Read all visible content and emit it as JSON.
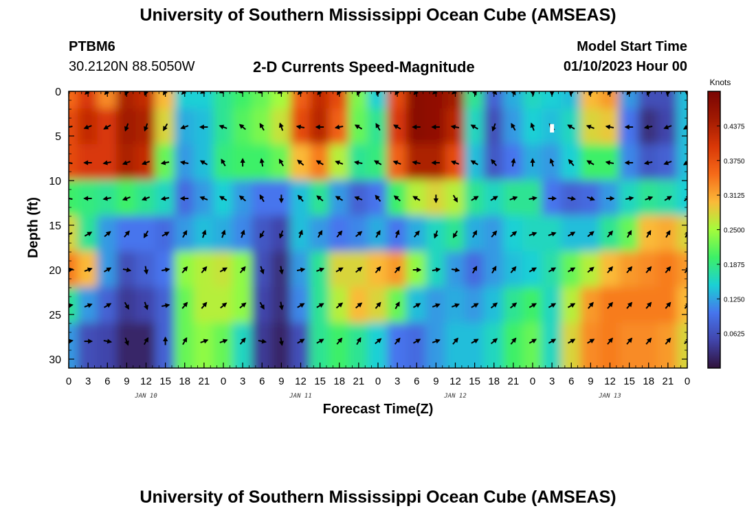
{
  "header": {
    "title": "University of Southern Mississippi Ocean Cube (AMSEAS)",
    "station_id": "PTBM6",
    "coordinates": "30.2120N  88.5050W",
    "model_start_label": "Model Start Time",
    "model_start_value": "01/10/2023 Hour 00",
    "footer_title": "University of Southern Mississippi Ocean Cube (AMSEAS)"
  },
  "chart_data": {
    "type": "heatmap",
    "title": "2-D Currents Speed-Magnitude",
    "xlabel": "Forecast Time(Z)",
    "ylabel": "Depth (ft)",
    "x_ticks": [
      "0",
      "3",
      "6",
      "9",
      "12",
      "15",
      "18",
      "21",
      "0",
      "3",
      "6",
      "9",
      "12",
      "15",
      "18",
      "21",
      "0",
      "3",
      "6",
      "9",
      "12",
      "15",
      "18",
      "21",
      "0",
      "3",
      "6",
      "9",
      "12",
      "15",
      "18",
      "21",
      "0"
    ],
    "day_labels": [
      "JAN 10",
      "JAN 11",
      "JAN 12",
      "JAN 13"
    ],
    "y_ticks": [
      "0",
      "5",
      "10",
      "15",
      "20",
      "25",
      "30"
    ],
    "ylim": [
      0,
      31
    ],
    "xlim_hours": [
      0,
      96
    ],
    "colorbar": {
      "unit": "Knots",
      "ticks": [
        "0.4375",
        "0.3750",
        "0.3125",
        "0.2500",
        "0.1875",
        "0.1250",
        "0.0625"
      ],
      "range": [
        0,
        0.5
      ]
    },
    "depths_ft": [
      0,
      4,
      8,
      12,
      16,
      20,
      24,
      28
    ],
    "times_h": [
      0,
      3,
      6,
      9,
      12,
      15,
      18,
      21,
      24,
      27,
      30,
      33,
      36,
      39,
      42,
      45,
      48,
      51,
      54,
      57,
      60,
      63,
      66,
      69,
      72,
      75,
      78,
      81,
      84,
      87,
      90,
      93,
      96
    ],
    "speed_knots": [
      [
        0.35,
        0.4,
        0.33,
        0.44,
        0.42,
        0.3,
        0.15,
        0.15,
        0.18,
        0.2,
        0.22,
        0.25,
        0.36,
        0.42,
        0.38,
        0.23,
        0.15,
        0.38,
        0.48,
        0.47,
        0.45,
        0.18,
        0.08,
        0.13,
        0.16,
        0.15,
        0.14,
        0.3,
        0.32,
        0.12,
        0.06,
        0.06,
        0.14
      ],
      [
        0.38,
        0.42,
        0.4,
        0.45,
        0.44,
        0.28,
        0.13,
        0.14,
        0.18,
        0.21,
        0.23,
        0.27,
        0.38,
        0.43,
        0.36,
        0.22,
        0.18,
        0.4,
        0.48,
        0.47,
        0.43,
        0.16,
        0.06,
        0.12,
        0.15,
        0.14,
        0.16,
        0.28,
        0.29,
        0.1,
        0.03,
        0.05,
        0.14
      ],
      [
        0.38,
        0.4,
        0.4,
        0.44,
        0.42,
        0.22,
        0.12,
        0.14,
        0.19,
        0.2,
        0.2,
        0.22,
        0.3,
        0.34,
        0.26,
        0.18,
        0.19,
        0.36,
        0.44,
        0.44,
        0.38,
        0.14,
        0.07,
        0.1,
        0.13,
        0.12,
        0.15,
        0.2,
        0.2,
        0.11,
        0.07,
        0.08,
        0.14
      ],
      [
        0.2,
        0.19,
        0.18,
        0.2,
        0.18,
        0.16,
        0.09,
        0.12,
        0.15,
        0.12,
        0.1,
        0.1,
        0.14,
        0.18,
        0.12,
        0.08,
        0.1,
        0.2,
        0.26,
        0.28,
        0.26,
        0.18,
        0.16,
        0.18,
        0.18,
        0.1,
        0.08,
        0.09,
        0.12,
        0.16,
        0.18,
        0.17,
        0.15
      ],
      [
        0.28,
        0.18,
        0.12,
        0.1,
        0.1,
        0.09,
        0.12,
        0.14,
        0.13,
        0.11,
        0.07,
        0.05,
        0.14,
        0.12,
        0.1,
        0.11,
        0.13,
        0.1,
        0.13,
        0.16,
        0.18,
        0.13,
        0.12,
        0.15,
        0.16,
        0.16,
        0.14,
        0.14,
        0.18,
        0.22,
        0.3,
        0.31,
        0.28
      ],
      [
        0.34,
        0.3,
        0.12,
        0.06,
        0.08,
        0.1,
        0.24,
        0.26,
        0.27,
        0.24,
        0.06,
        0.03,
        0.12,
        0.18,
        0.28,
        0.28,
        0.3,
        0.32,
        0.24,
        0.16,
        0.12,
        0.09,
        0.12,
        0.14,
        0.15,
        0.17,
        0.22,
        0.26,
        0.3,
        0.32,
        0.33,
        0.34,
        0.32
      ],
      [
        0.18,
        0.12,
        0.08,
        0.04,
        0.05,
        0.08,
        0.22,
        0.26,
        0.26,
        0.24,
        0.05,
        0.03,
        0.11,
        0.18,
        0.26,
        0.3,
        0.28,
        0.22,
        0.14,
        0.12,
        0.13,
        0.12,
        0.14,
        0.18,
        0.2,
        0.16,
        0.26,
        0.32,
        0.34,
        0.34,
        0.34,
        0.34,
        0.3
      ],
      [
        0.12,
        0.06,
        0.05,
        0.02,
        0.02,
        0.08,
        0.22,
        0.24,
        0.22,
        0.16,
        0.04,
        0.02,
        0.06,
        0.18,
        0.2,
        0.18,
        0.15,
        0.1,
        0.09,
        0.12,
        0.14,
        0.14,
        0.16,
        0.2,
        0.22,
        0.16,
        0.28,
        0.33,
        0.34,
        0.33,
        0.33,
        0.32,
        0.28
      ]
    ],
    "direction_deg": [
      [
        230,
        225,
        220,
        200,
        200,
        210,
        225,
        240,
        250,
        255,
        250,
        240,
        220,
        215,
        210,
        200,
        195,
        210,
        220,
        230,
        230,
        160,
        140,
        150,
        170,
        180,
        190,
        200,
        210,
        215,
        200,
        190,
        180
      ],
      [
        260,
        250,
        240,
        200,
        200,
        210,
        250,
        270,
        290,
        310,
        330,
        340,
        280,
        270,
        260,
        300,
        330,
        300,
        270,
        270,
        280,
        300,
        200,
        330,
        340,
        320,
        300,
        290,
        280,
        270,
        260,
        250,
        240
      ],
      [
        280,
        270,
        260,
        250,
        250,
        260,
        280,
        300,
        330,
        0,
        350,
        330,
        310,
        300,
        290,
        280,
        300,
        290,
        280,
        270,
        290,
        300,
        320,
        10,
        0,
        340,
        320,
        300,
        280,
        270,
        260,
        250,
        240
      ],
      [
        280,
        270,
        260,
        250,
        250,
        260,
        270,
        290,
        300,
        310,
        330,
        180,
        320,
        310,
        300,
        290,
        320,
        310,
        300,
        180,
        150,
        60,
        60,
        70,
        80,
        90,
        100,
        110,
        90,
        80,
        70,
        60,
        50
      ],
      [
        250,
        60,
        50,
        40,
        210,
        60,
        30,
        20,
        20,
        20,
        210,
        200,
        20,
        30,
        40,
        50,
        30,
        20,
        40,
        200,
        210,
        30,
        40,
        50,
        70,
        70,
        60,
        50,
        40,
        30,
        30,
        30,
        30
      ],
      [
        80,
        70,
        60,
        100,
        170,
        80,
        40,
        40,
        60,
        40,
        160,
        170,
        80,
        70,
        60,
        50,
        40,
        40,
        90,
        80,
        100,
        30,
        30,
        40,
        60,
        60,
        60,
        50,
        40,
        40,
        40,
        40,
        40
      ],
      [
        80,
        70,
        60,
        150,
        160,
        80,
        40,
        40,
        50,
        50,
        150,
        170,
        60,
        60,
        50,
        50,
        40,
        30,
        60,
        70,
        70,
        60,
        50,
        50,
        60,
        60,
        60,
        40,
        40,
        40,
        40,
        40,
        40
      ],
      [
        80,
        90,
        100,
        160,
        30,
        0,
        30,
        70,
        70,
        40,
        100,
        170,
        60,
        60,
        40,
        30,
        50,
        40,
        60,
        70,
        40,
        60,
        50,
        40,
        60,
        60,
        60,
        60,
        40,
        40,
        40,
        40,
        50
      ]
    ],
    "annotation": {
      "hour": 75,
      "depth_ft": 4,
      "text": "▮"
    }
  }
}
